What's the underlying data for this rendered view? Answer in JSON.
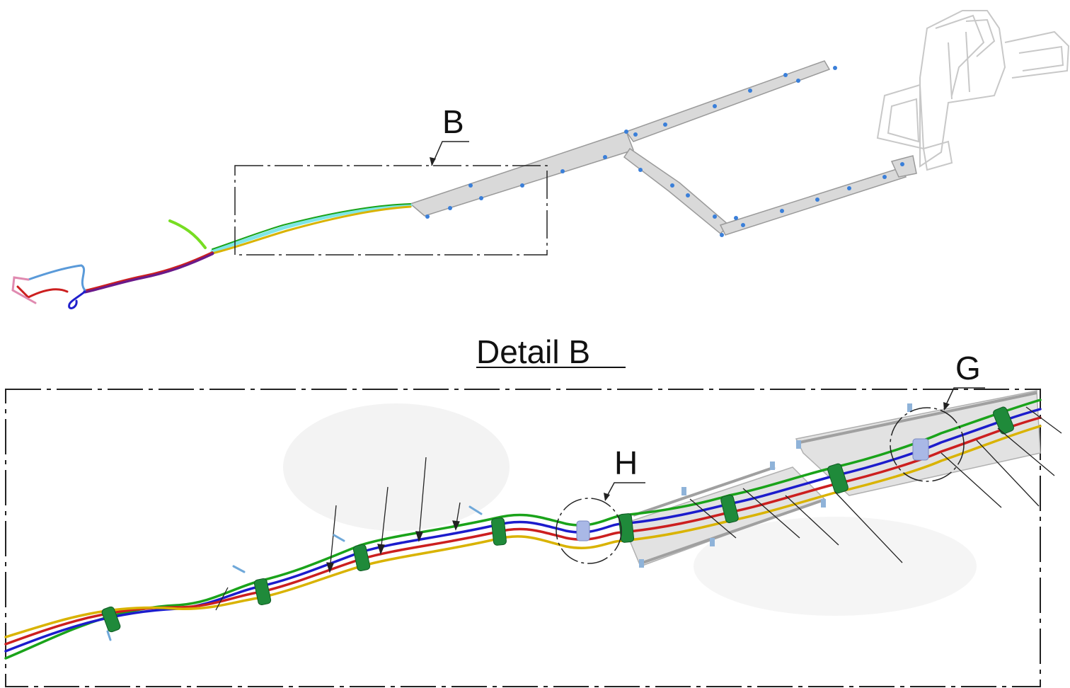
{
  "overview": {
    "callout_label": "B"
  },
  "detail": {
    "title": "Detail B",
    "callout_h": "H",
    "callout_g": "G"
  },
  "colors": {
    "tray": "#d9d9d9",
    "tray_edge": "#9a9a9a",
    "cable_green": "#1aa31a",
    "cable_blue": "#1c1ccc",
    "cable_red": "#cc1f1f",
    "cable_yellow": "#d9b300",
    "clamp": "#1f8a3a",
    "fastener": "#3a7fd9",
    "light_cyan": "#7fe6e6"
  }
}
